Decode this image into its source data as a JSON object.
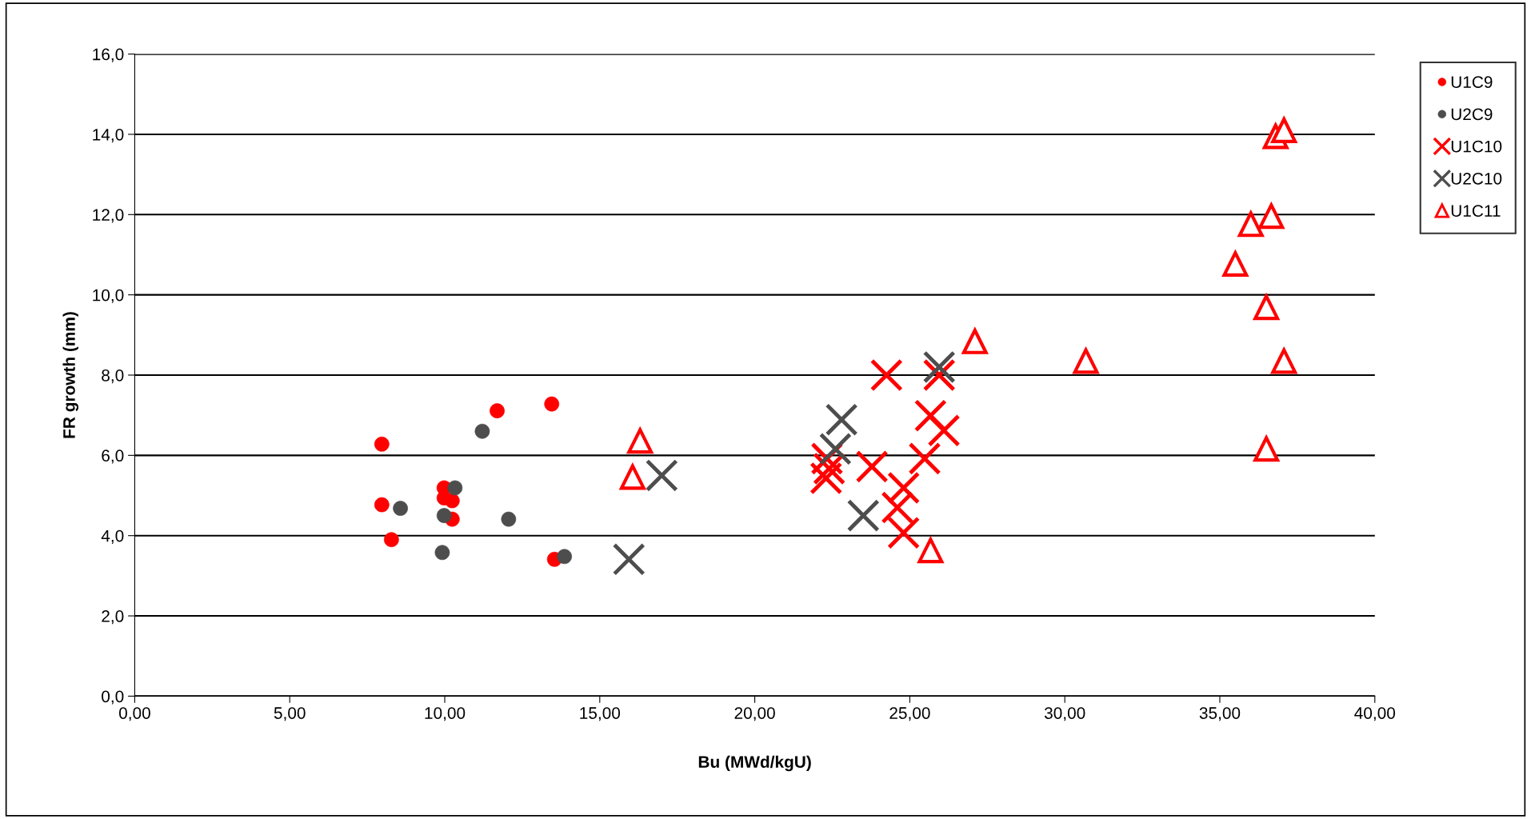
{
  "chart_data": {
    "type": "scatter",
    "xlabel": "Bu (MWd/kgU)",
    "ylabel": "FR growth (mm)",
    "xlim": [
      0,
      40
    ],
    "ylim": [
      0,
      16
    ],
    "xticks": [
      {
        "value": 0,
        "label": "0,00"
      },
      {
        "value": 5,
        "label": "5,00"
      },
      {
        "value": 10,
        "label": "10,00"
      },
      {
        "value": 15,
        "label": "15,00"
      },
      {
        "value": 20,
        "label": "20,00"
      },
      {
        "value": 25,
        "label": "25,00"
      },
      {
        "value": 30,
        "label": "30,00"
      },
      {
        "value": 35,
        "label": "35,00"
      },
      {
        "value": 40,
        "label": "40,00"
      }
    ],
    "yticks": [
      {
        "value": 0,
        "label": "0,0"
      },
      {
        "value": 2,
        "label": "2,0"
      },
      {
        "value": 4,
        "label": "4,0"
      },
      {
        "value": 6,
        "label": "6,0"
      },
      {
        "value": 8,
        "label": "8,0"
      },
      {
        "value": 10,
        "label": "10,0"
      },
      {
        "value": 12,
        "label": "12,0"
      },
      {
        "value": 14,
        "label": "14,0"
      },
      {
        "value": 16,
        "label": "16,0"
      }
    ],
    "grid": "y",
    "legend": "top right",
    "series": [
      {
        "name": "U1C9",
        "color": "#ff0000",
        "marker": "circle",
        "x": [
          7.97,
          7.97,
          8.28,
          9.98,
          9.98,
          10.24,
          10.24,
          11.69,
          13.45,
          13.54
        ],
        "values": [
          6.28,
          4.77,
          3.9,
          5.19,
          4.94,
          4.87,
          4.41,
          7.11,
          7.28,
          3.41
        ]
      },
      {
        "name": "U2C9",
        "color": "#4d4d4d",
        "marker": "circle",
        "x": [
          8.57,
          9.98,
          9.92,
          10.33,
          11.21,
          12.06,
          13.86
        ],
        "values": [
          4.68,
          4.5,
          3.58,
          5.19,
          6.6,
          4.41,
          3.48
        ]
      },
      {
        "name": "U1C10",
        "color": "#ff0000",
        "marker": "cross",
        "x": [
          24.25,
          25.95,
          25.67,
          26.1,
          25.48,
          23.78,
          22.33,
          22.4,
          22.3,
          24.8,
          24.6,
          24.8
        ],
        "values": [
          8.0,
          8.0,
          6.99,
          6.62,
          5.92,
          5.72,
          5.92,
          5.67,
          5.43,
          5.19,
          4.7,
          4.07
        ]
      },
      {
        "name": "U2C10",
        "color": "#4d4d4d",
        "marker": "cross",
        "x": [
          15.94,
          17.0,
          22.8,
          22.6,
          23.5,
          25.95
        ],
        "values": [
          3.41,
          5.5,
          6.89,
          6.16,
          4.5,
          8.2
        ]
      },
      {
        "name": "U1C11",
        "color": "#ff0000",
        "marker": "triangle",
        "x": [
          16.3,
          16.06,
          25.67,
          27.1,
          30.68,
          35.5,
          36.0,
          36.66,
          36.5,
          37.07,
          36.5,
          36.8,
          37.07
        ],
        "values": [
          6.36,
          5.46,
          3.63,
          8.84,
          8.35,
          10.77,
          11.76,
          11.96,
          9.69,
          8.35,
          6.16,
          13.95,
          14.1
        ]
      }
    ]
  }
}
